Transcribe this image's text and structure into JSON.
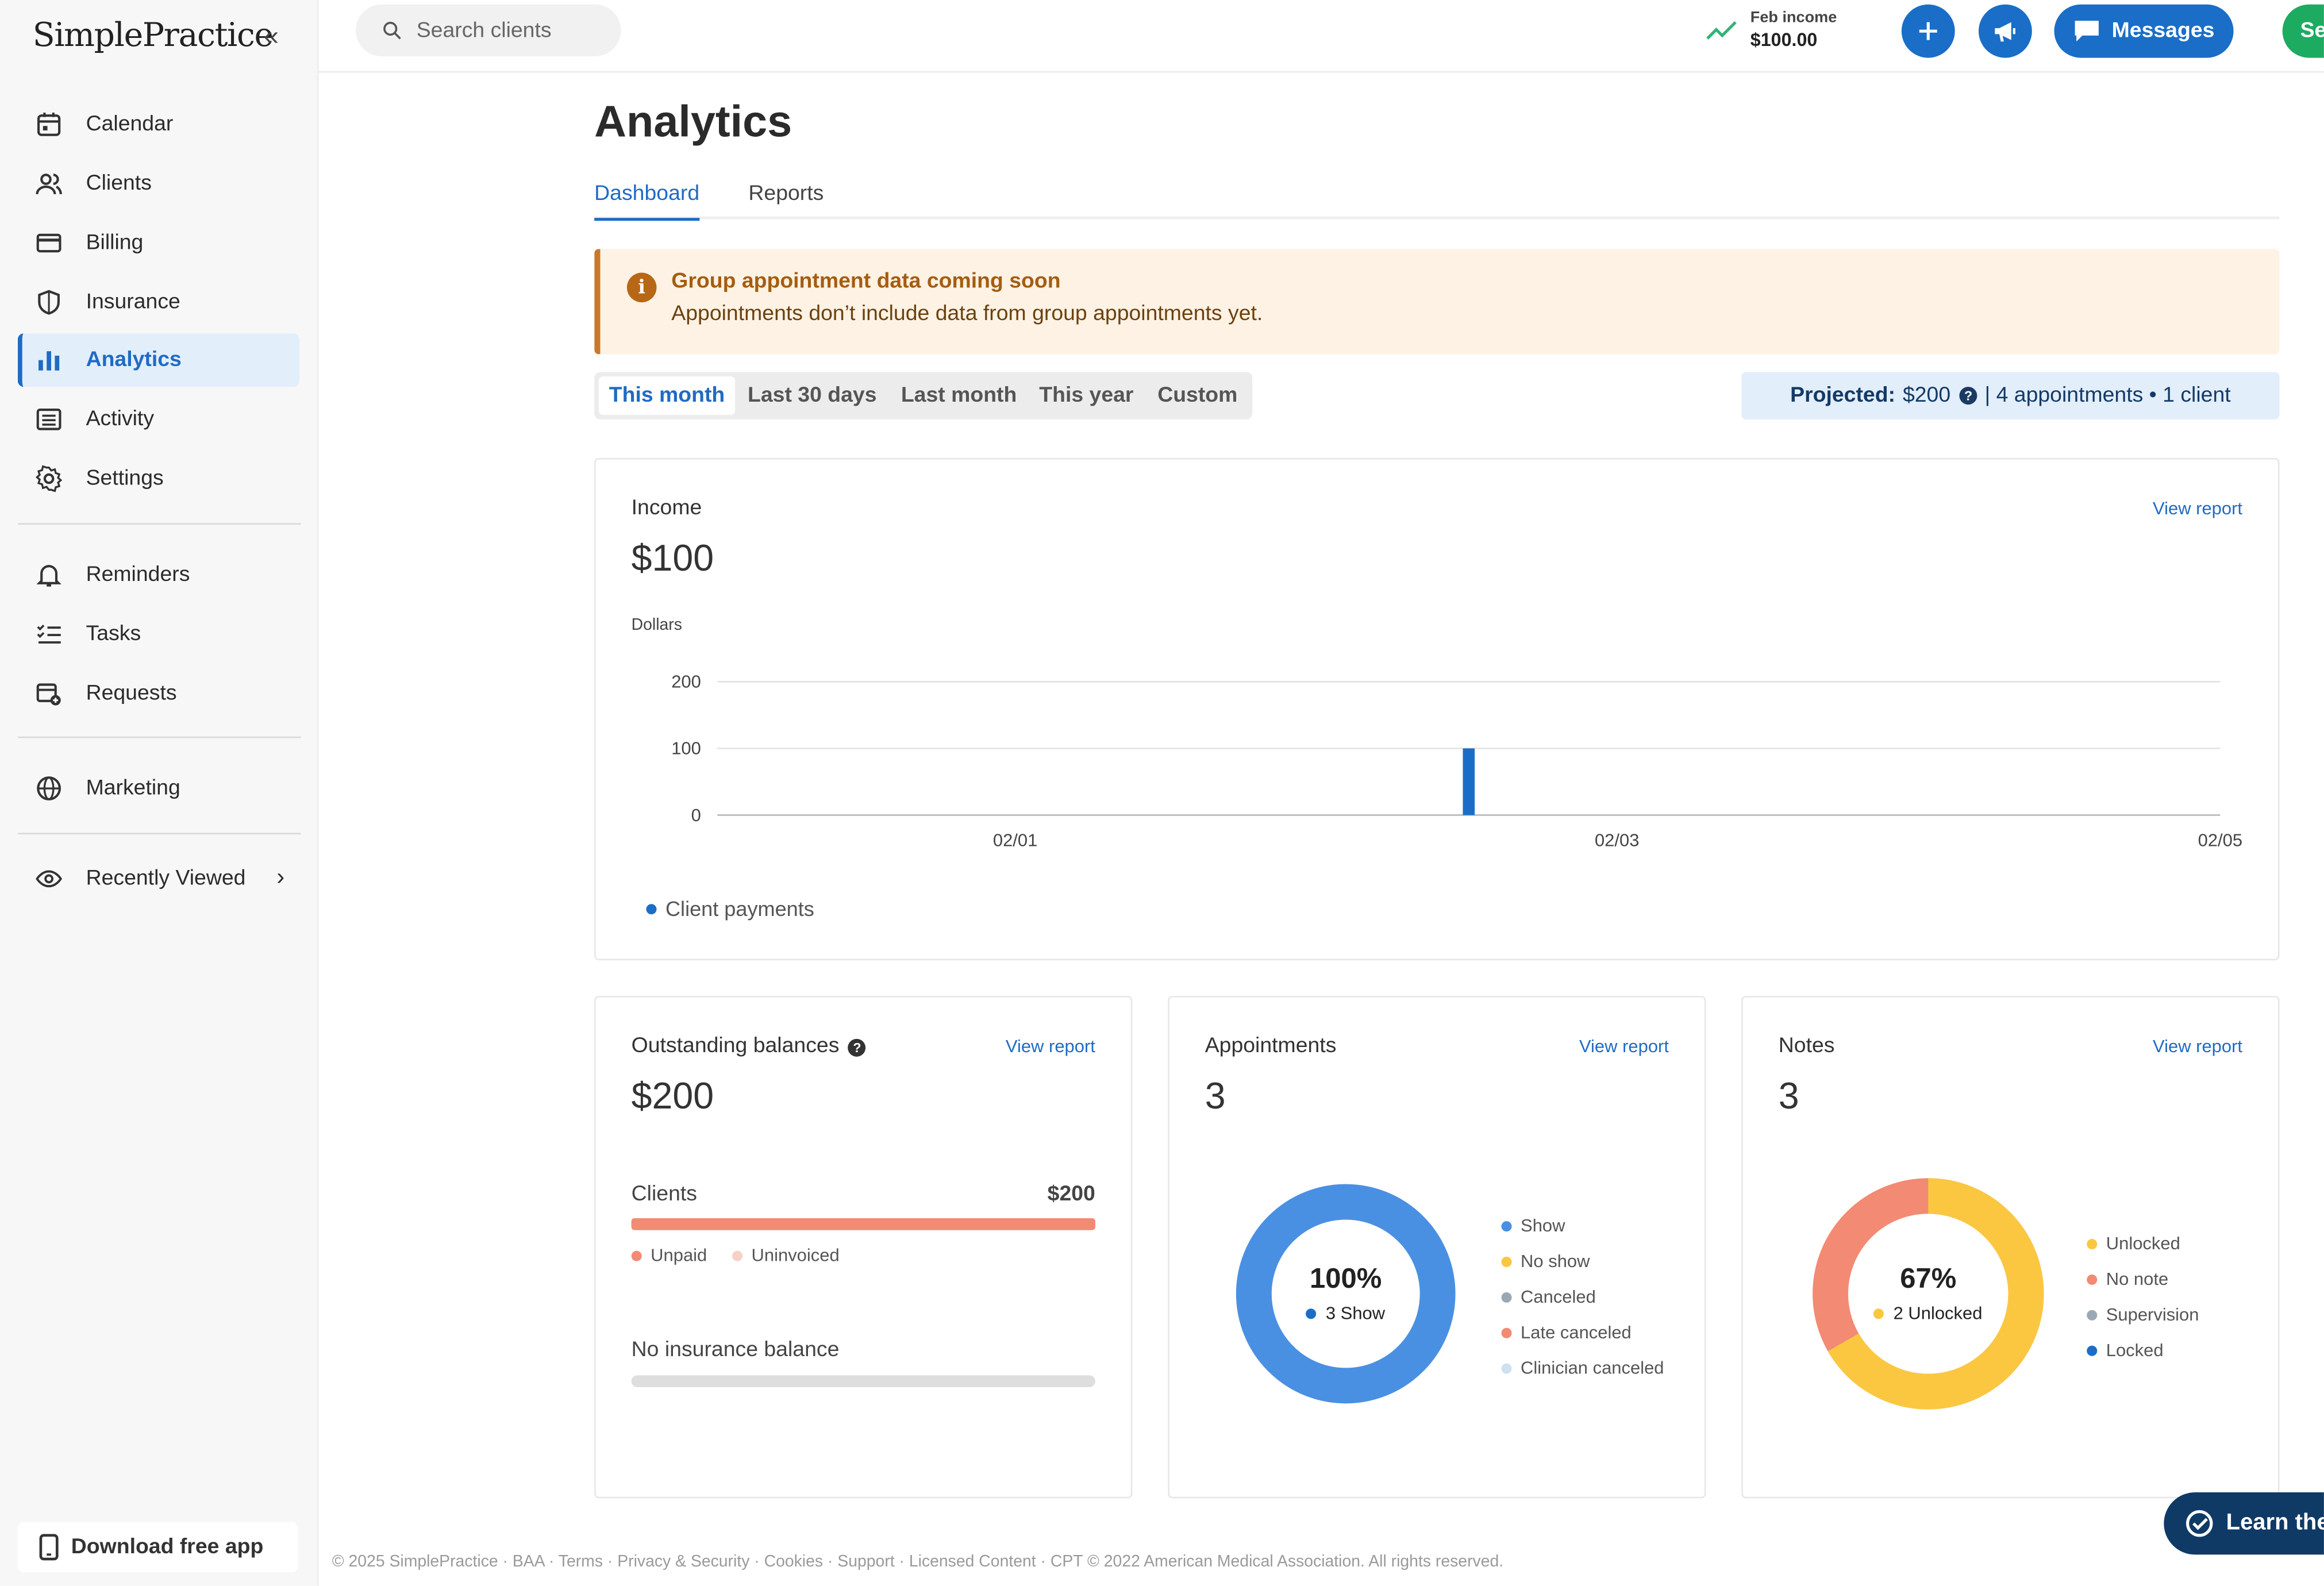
{
  "app": {
    "logo": "SimplePractice",
    "collapse_icon": "«"
  },
  "sidebar": {
    "items": [
      {
        "label": "Calendar",
        "icon": "calendar-icon"
      },
      {
        "label": "Clients",
        "icon": "clients-icon"
      },
      {
        "label": "Billing",
        "icon": "billing-icon"
      },
      {
        "label": "Insurance",
        "icon": "shield-icon"
      },
      {
        "label": "Analytics",
        "icon": "bar-chart-icon",
        "active": true
      },
      {
        "label": "Activity",
        "icon": "list-icon"
      },
      {
        "label": "Settings",
        "icon": "gear-icon"
      }
    ],
    "secondary": [
      {
        "label": "Reminders",
        "icon": "bell-icon"
      },
      {
        "label": "Tasks",
        "icon": "checklist-icon"
      },
      {
        "label": "Requests",
        "icon": "calendar-plus-icon"
      }
    ],
    "marketing": {
      "label": "Marketing",
      "icon": "globe-icon"
    },
    "recently_viewed": {
      "label": "Recently Viewed",
      "icon": "eye-icon"
    },
    "download": {
      "label": "Download free app",
      "icon": "phone-icon"
    }
  },
  "topbar": {
    "search_placeholder": "Search clients",
    "income_label": "Feb income",
    "income_value": "$100.00",
    "messages_label": "Messages",
    "green_button_label": "Se"
  },
  "page": {
    "title": "Analytics",
    "tabs": [
      "Dashboard",
      "Reports"
    ],
    "active_tab": "Dashboard"
  },
  "banner": {
    "title": "Group appointment data coming soon",
    "description": "Appointments don’t include data from group appointments yet."
  },
  "range": {
    "options": [
      "This month",
      "Last 30 days",
      "Last month",
      "This year",
      "Custom"
    ],
    "selected": "This month"
  },
  "projected": {
    "label": "Projected:",
    "value": "$200",
    "details": "| 4 appointments • 1 client"
  },
  "income_card": {
    "title": "Income",
    "value": "$100",
    "view_report": "View report",
    "legend": "Client payments"
  },
  "chart_data": {
    "type": "bar",
    "ylabel": "Dollars",
    "ylim": [
      0,
      200
    ],
    "yticks": [
      "200",
      "100",
      "0"
    ],
    "xticks": [
      "02/01",
      "02/03",
      "02/05"
    ],
    "xlim": [
      0,
      4
    ],
    "grid": true,
    "series": [
      {
        "name": "Client payments",
        "color": "#1a6ec7",
        "x": [
          2
        ],
        "values": [
          100
        ]
      }
    ]
  },
  "outstanding_card": {
    "title": "Outstanding balances",
    "value": "$200",
    "view_report": "View report",
    "clients_label": "Clients",
    "clients_value": "$200",
    "clients_unpaid_fraction": 1,
    "legend": [
      "Unpaid",
      "Uninvoiced"
    ],
    "insurance_label": "No insurance balance"
  },
  "appointments_card": {
    "title": "Appointments",
    "value": "3",
    "view_report": "View report",
    "center_pct": "100%",
    "center_label": "3 Show",
    "show_fraction": 1,
    "legend": [
      "Show",
      "No show",
      "Canceled",
      "Late canceled",
      "Clinician canceled"
    ]
  },
  "notes_card": {
    "title": "Notes",
    "value": "3",
    "view_report": "View report",
    "center_pct": "67%",
    "center_label": "2 Unlocked",
    "unlocked_fraction": 0.667,
    "legend": [
      "Unlocked",
      "No note",
      "Supervision",
      "Locked"
    ]
  },
  "colors": {
    "accent": "#1a6ec7",
    "unpaid": "#f38a73",
    "uninvoiced": "#f8d0c4",
    "yellow": "#fbc740",
    "gray": "#9aa8b6",
    "light": "#cfe0ee"
  },
  "footer": "© 2025 SimplePractice · BAA · Terms · Privacy & Security · Cookies · Support · Licensed Content · CPT © 2022 American Medical Association. All rights reserved.",
  "learn_button": "Learn the"
}
